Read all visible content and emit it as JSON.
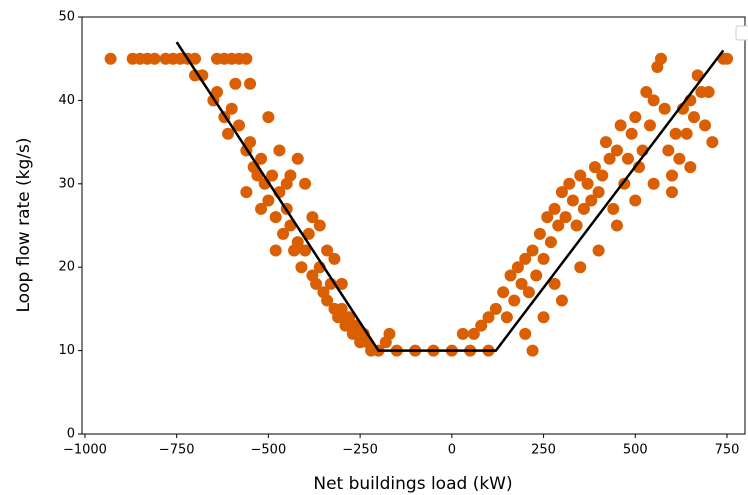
{
  "chart_data": {
    "type": "scatter",
    "x_label": "Net buildings load (kW)",
    "y_label": "Loop flow rate (kg/s)",
    "xlim": [
      -1008,
      799
    ],
    "ylim": [
      0,
      50
    ],
    "xticks": [
      {
        "value": -1000,
        "label": "−1000"
      },
      {
        "value": -750,
        "label": "−750"
      },
      {
        "value": -500,
        "label": "−500"
      },
      {
        "value": -250,
        "label": "−250"
      },
      0,
      250,
      500,
      750
    ],
    "yticks": [
      0,
      10,
      20,
      30,
      40,
      50
    ],
    "color": "#d95f02",
    "x": [
      -930,
      -870,
      -850,
      -830,
      -810,
      -780,
      -760,
      -740,
      -720,
      -700,
      -640,
      -620,
      -600,
      -580,
      -560,
      -700,
      -680,
      -650,
      -640,
      -620,
      -610,
      -600,
      -590,
      -580,
      -560,
      -550,
      -540,
      -530,
      -520,
      -510,
      -500,
      -490,
      -480,
      -470,
      -460,
      -450,
      -440,
      -430,
      -420,
      -410,
      -400,
      -390,
      -380,
      -370,
      -360,
      -350,
      -340,
      -330,
      -320,
      -310,
      -300,
      -290,
      -280,
      -270,
      -260,
      -250,
      -240,
      -230,
      -220,
      -200,
      -180,
      -170,
      -560,
      -520,
      -480,
      -450,
      -420,
      -400,
      -380,
      -360,
      -340,
      -320,
      -300,
      -550,
      -500,
      -470,
      -440,
      -150,
      -100,
      -50,
      0,
      50,
      100,
      30,
      60,
      80,
      100,
      120,
      140,
      150,
      160,
      170,
      180,
      190,
      200,
      210,
      220,
      230,
      240,
      250,
      260,
      270,
      280,
      290,
      300,
      310,
      320,
      330,
      340,
      350,
      360,
      370,
      380,
      390,
      400,
      410,
      420,
      430,
      440,
      450,
      460,
      470,
      480,
      490,
      500,
      510,
      520,
      530,
      540,
      550,
      560,
      570,
      580,
      590,
      600,
      610,
      620,
      630,
      640,
      650,
      660,
      670,
      680,
      690,
      700,
      710,
      740,
      750,
      200,
      220,
      250,
      280,
      300,
      350,
      400,
      450,
      500,
      550,
      600,
      650
    ],
    "values": [
      45,
      45,
      45,
      45,
      45,
      45,
      45,
      45,
      45,
      45,
      45,
      45,
      45,
      45,
      45,
      43,
      43,
      40,
      41,
      38,
      36,
      39,
      42,
      37,
      34,
      35,
      32,
      31,
      33,
      30,
      28,
      31,
      26,
      29,
      24,
      27,
      25,
      22,
      23,
      20,
      22,
      24,
      19,
      18,
      20,
      17,
      16,
      18,
      15,
      14,
      15,
      13,
      14,
      12,
      13,
      11,
      12,
      11,
      10,
      10,
      11,
      12,
      29,
      27,
      22,
      30,
      33,
      30,
      26,
      25,
      22,
      21,
      18,
      42,
      38,
      34,
      31,
      10,
      10,
      10,
      10,
      10,
      10,
      12,
      12,
      13,
      14,
      15,
      17,
      14,
      19,
      16,
      20,
      18,
      21,
      17,
      22,
      19,
      24,
      21,
      26,
      23,
      27,
      25,
      29,
      26,
      30,
      28,
      25,
      31,
      27,
      30,
      28,
      32,
      29,
      31,
      35,
      33,
      27,
      34,
      37,
      30,
      33,
      36,
      38,
      32,
      34,
      41,
      37,
      40,
      44,
      45,
      39,
      34,
      31,
      36,
      33,
      39,
      36,
      40,
      38,
      43,
      41,
      37,
      41,
      35,
      45,
      45,
      12,
      10,
      14,
      18,
      16,
      20,
      22,
      25,
      28,
      30,
      29,
      32
    ],
    "fit_line": {
      "color": "#000000",
      "x": [
        -750,
        -200,
        120,
        740
      ],
      "y": [
        47,
        10,
        10,
        46
      ]
    }
  }
}
